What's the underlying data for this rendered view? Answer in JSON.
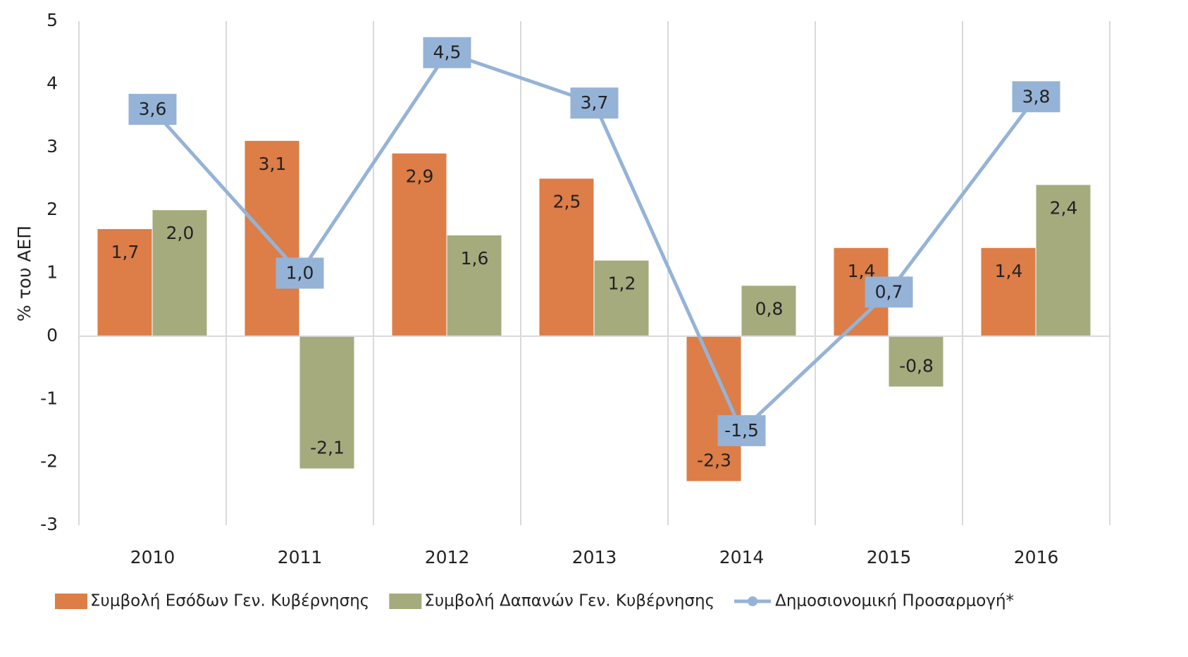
{
  "chart_data": {
    "type": "bar_line",
    "y_label": "% του ΑΕΠ",
    "categories": [
      "2010",
      "2011",
      "2012",
      "2013",
      "2014",
      "2015",
      "2016"
    ],
    "series": [
      {
        "name": "Συμβολή Εσόδων Γεν. Κυβέρνησης",
        "type": "bar",
        "color": "#dd7d47",
        "values": [
          1.7,
          3.1,
          2.9,
          2.5,
          -2.3,
          1.4,
          1.4
        ],
        "value_labels": [
          "1,7",
          "3,1",
          "2,9",
          "2,5",
          "-2,3",
          "1,4",
          "1,4"
        ]
      },
      {
        "name": "Συμβολή Δαπανών Γεν. Κυβέρνησης",
        "type": "bar",
        "color": "#a5ab7d",
        "values": [
          2.0,
          -2.1,
          1.6,
          1.2,
          0.8,
          -0.8,
          2.4
        ],
        "value_labels": [
          "2,0",
          "-2,1",
          "1,6",
          "1,2",
          "0,8",
          "-0,8",
          "2,4"
        ]
      },
      {
        "name": "Δημοσιονομική Προσαρμογή*",
        "type": "line",
        "color": "#95b3d7",
        "values": [
          3.6,
          1.0,
          4.5,
          3.7,
          -1.5,
          0.7,
          3.8
        ],
        "value_labels": [
          "3,6",
          "1,0",
          "4,5",
          "3,7",
          "-1,5",
          "0,7",
          "3,8"
        ]
      }
    ],
    "ylim": [
      -3,
      5
    ],
    "yticks": [
      -3,
      -2,
      -1,
      0,
      1,
      2,
      3,
      4,
      5
    ],
    "grid": {
      "x": true,
      "y": false
    },
    "legend": "bottom"
  }
}
